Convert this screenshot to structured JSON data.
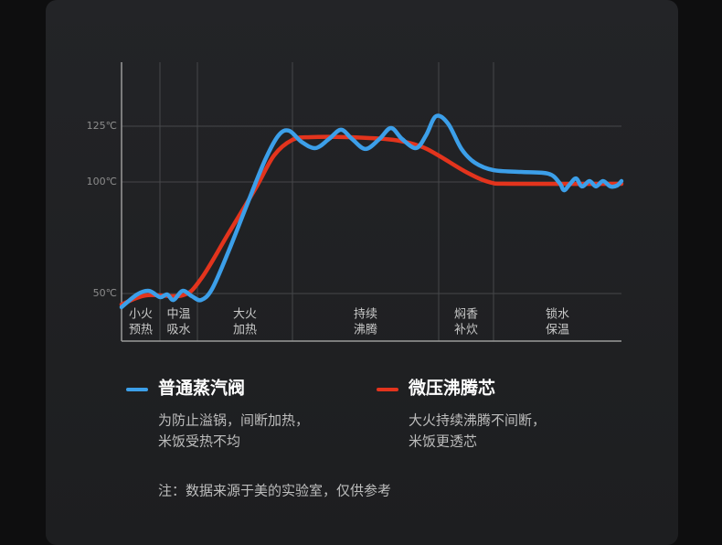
{
  "chart_data": {
    "type": "line",
    "ylim": [
      28.7,
      153.7
    ],
    "xlim": [
      0,
      100
    ],
    "yticks": [
      {
        "value": 50,
        "label": "50℃"
      },
      {
        "value": 100,
        "label": "100℃"
      },
      {
        "value": 125,
        "label": "125℃"
      }
    ],
    "grid": true,
    "phases": [
      [
        "小火",
        "预热"
      ],
      [
        "中温",
        "吸水"
      ],
      [
        "大火",
        "加热"
      ],
      [
        "持续",
        "沸腾"
      ],
      [
        "焖香",
        "补炊"
      ],
      [
        "锁水",
        "保温"
      ]
    ],
    "series": [
      {
        "name": "普通蒸汽阀",
        "color": "#3c9fe9",
        "description": [
          "为防止溢锅，间断加热，",
          "米饭受热不均"
        ],
        "x": [
          0,
          3.1,
          5.5,
          7.7,
          9.1,
          10.4,
          12.2,
          14.1,
          15.9,
          18.1,
          21.4,
          25.0,
          28.7,
          31.4,
          33.5,
          36.0,
          38.8,
          41.5,
          43.9,
          46.1,
          48.8,
          51.6,
          53.9,
          56.1,
          58.9,
          60.9,
          62.9,
          65.3,
          68.0,
          70.7,
          74.4,
          79.9,
          85.4,
          87.6,
          88.5,
          89.6,
          90.9,
          92.1,
          93.6,
          94.9,
          96.3,
          97.8,
          99.1,
          100
        ],
        "values": [
          43.9,
          49.6,
          51.2,
          48.4,
          49.6,
          47.1,
          51.2,
          48.8,
          47.1,
          52.0,
          68.9,
          89.3,
          109.8,
          120.9,
          123.0,
          118.0,
          115.2,
          119.3,
          123.4,
          119.3,
          114.8,
          119.3,
          124.2,
          119.3,
          115.2,
          120.9,
          129.5,
          126.2,
          114.8,
          108.6,
          105.3,
          104.5,
          103.7,
          99.6,
          96.3,
          98.8,
          101.6,
          98.0,
          100.4,
          98.0,
          100.4,
          98.0,
          98.4,
          100.4
        ]
      },
      {
        "name": "微压沸腾芯",
        "color": "#e3341d",
        "description": [
          "大火持续沸腾不间断，",
          "米饭更透芯"
        ],
        "x": [
          0,
          4.9,
          12.2,
          15.9,
          21.4,
          26.9,
          30.5,
          34.2,
          37.8,
          45.2,
          54.3,
          59.8,
          63.4,
          68.9,
          73.5,
          78.1,
          100
        ],
        "values": [
          45.1,
          49.2,
          49.2,
          56.6,
          77.0,
          97.5,
          111.9,
          118.9,
          120.1,
          120.1,
          118.9,
          116.0,
          111.9,
          104.5,
          100.0,
          99.2,
          99.2
        ]
      }
    ],
    "note": "注：数据来源于美的实验室，仅供参考"
  }
}
